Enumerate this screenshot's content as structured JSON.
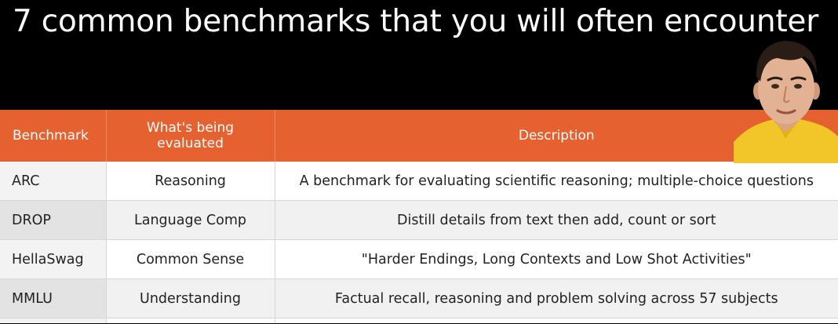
{
  "slide": {
    "title": "7 common benchmarks that you will often encounter"
  },
  "table": {
    "headers": {
      "benchmark": "Benchmark",
      "evaluated": "What's being evaluated",
      "description": "Description"
    },
    "rows": [
      {
        "benchmark": "ARC",
        "evaluated": "Reasoning",
        "description": "A benchmark for evaluating scientific reasoning; multiple-choice questions"
      },
      {
        "benchmark": "DROP",
        "evaluated": "Language Comp",
        "description": "Distill details from text then add, count or sort"
      },
      {
        "benchmark": "HellaSwag",
        "evaluated": "Common Sense",
        "description": "\"Harder Endings, Long Contexts and Low Shot Activities\""
      },
      {
        "benchmark": "MMLU",
        "evaluated": "Understanding",
        "description": "Factual recall, reasoning and problem solving across 57 subjects"
      }
    ]
  },
  "colors": {
    "background": "#000000",
    "header_accent": "#e5612f",
    "title_text": "#ffffff"
  },
  "presenter": {
    "icon": "presenter-webcam"
  }
}
